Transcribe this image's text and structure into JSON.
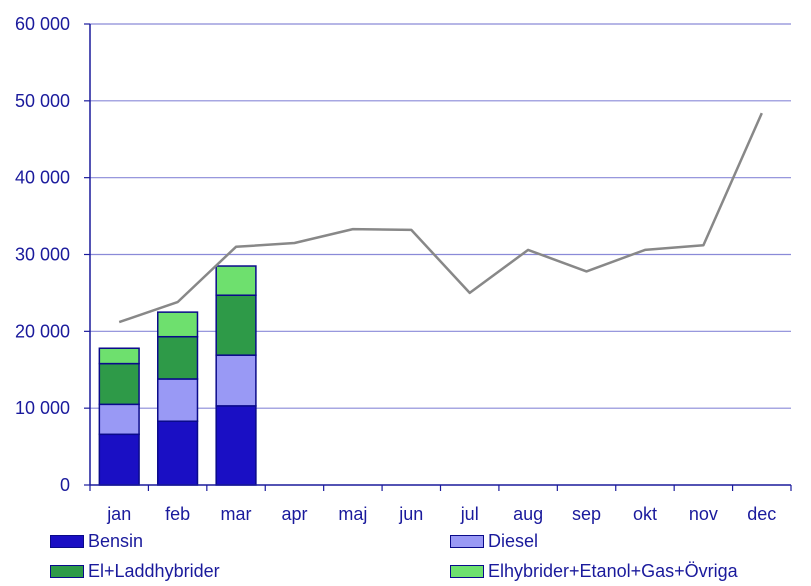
{
  "chart_data": {
    "type": "bar",
    "stacked": true,
    "categories": [
      "jan",
      "feb",
      "mar",
      "apr",
      "maj",
      "jun",
      "jul",
      "aug",
      "sep",
      "okt",
      "nov",
      "dec"
    ],
    "ylim": [
      0,
      60000
    ],
    "yticks": [
      0,
      10000,
      20000,
      30000,
      40000,
      50000,
      60000
    ],
    "ytick_labels": [
      "0",
      "10 000",
      "20 000",
      "30 000",
      "40 000",
      "50 000",
      "60 000"
    ],
    "grid": true,
    "legend_position": "bottom",
    "series": [
      {
        "name": "Bensin",
        "color": "#1a0fc4",
        "values": [
          6600,
          8300,
          10300,
          null,
          null,
          null,
          null,
          null,
          null,
          null,
          null,
          null
        ]
      },
      {
        "name": "Diesel",
        "color": "#9999f5",
        "values": [
          3900,
          5500,
          6600,
          null,
          null,
          null,
          null,
          null,
          null,
          null,
          null,
          null
        ]
      },
      {
        "name": "El+Laddhybrider",
        "color": "#2e9a48",
        "values": [
          5300,
          5500,
          7800,
          null,
          null,
          null,
          null,
          null,
          null,
          null,
          null,
          null
        ]
      },
      {
        "name": "Elhybrider+Etanol+Gas+Övriga",
        "color": "#6ee06e",
        "values": [
          2000,
          3200,
          3800,
          null,
          null,
          null,
          null,
          null,
          null,
          null,
          null,
          null
        ]
      }
    ],
    "line": {
      "color": "#888888",
      "values": [
        21200,
        23800,
        31000,
        31500,
        33300,
        33200,
        25000,
        30600,
        27800,
        30600,
        31200,
        48400
      ]
    }
  },
  "legend": {
    "bensin": "Bensin",
    "diesel": "Diesel",
    "el": "El+Laddhybrider",
    "ovriga": "Elhybrider+Etanol+Gas+Övriga"
  }
}
